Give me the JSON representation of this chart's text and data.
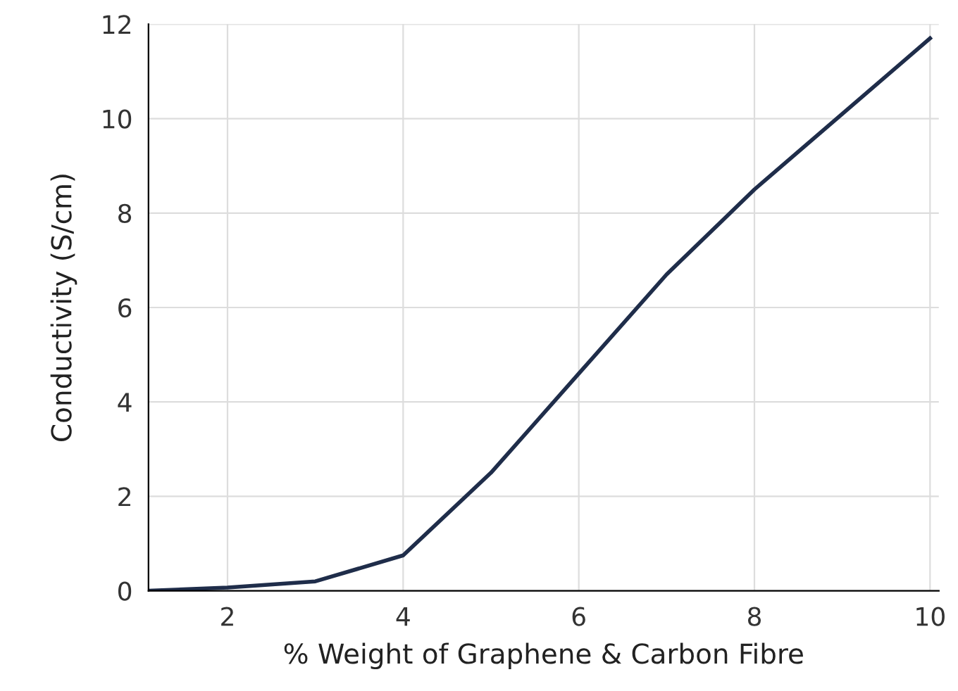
{
  "chart_data": {
    "type": "line",
    "xlabel": "% Weight of Graphene & Carbon Fibre",
    "ylabel": "Conductivity (S/cm)",
    "x": [
      1.1,
      2,
      3,
      4,
      5,
      6,
      7,
      8,
      9,
      10
    ],
    "series": [
      {
        "color": "#1f2d4a",
        "values": [
          0,
          0.07,
          0.2,
          0.75,
          2.5,
          4.6,
          6.7,
          8.5,
          10.1,
          11.7
        ]
      }
    ],
    "xlim": [
      1.1,
      10.1
    ],
    "ylim": [
      0,
      12
    ],
    "xticks": [
      2,
      4,
      6,
      8,
      10
    ],
    "yticks": [
      0,
      2,
      4,
      6,
      8,
      10,
      12
    ],
    "grid": true,
    "marker": "none",
    "line_style": "solid"
  }
}
